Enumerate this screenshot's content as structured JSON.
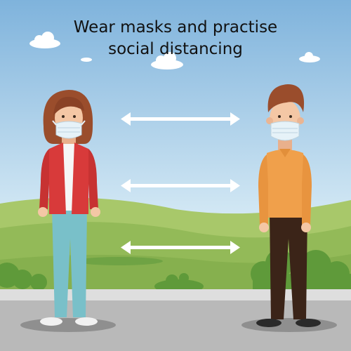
{
  "headline": {
    "line1": "Wear masks and practise",
    "line2": "social distancing"
  },
  "colors": {
    "sky_top": "#7fb3dc",
    "sky_bottom": "#d9ecf6",
    "hill_light": "#a8c86a",
    "hill_mid": "#86b04e",
    "hill_dark": "#5f9a3a",
    "road": "#b9b9b9",
    "curb": "#dedede",
    "jacket": "#d83a3a",
    "jeans": "#79c0c9",
    "sweater": "#f0a04b",
    "trousers": "#3b2418",
    "hair_brown": "#9a4d2c",
    "skin": "#f4c7a5",
    "mask": "#e6f2f8",
    "arrow": "#ffffff"
  },
  "icons": [
    "cloud",
    "double-arrow",
    "face-mask",
    "person-woman",
    "person-man"
  ]
}
